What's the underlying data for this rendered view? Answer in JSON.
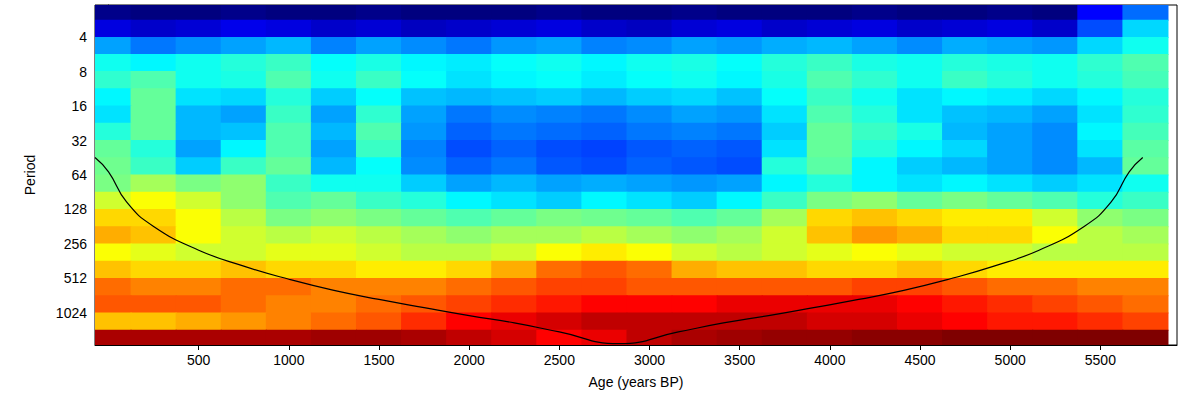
{
  "chart_data": {
    "type": "heatmap",
    "x_label": "Age (years BP)",
    "y_label": "Period",
    "log": "y",
    "xlim": [
      -75,
      5925
    ],
    "xticks": [
      500,
      1000,
      1500,
      2000,
      2500,
      3000,
      3500,
      4000,
      4500,
      5000,
      5500
    ],
    "ylim": [
      2.1,
      1950
    ],
    "yticks": [
      4,
      8,
      16,
      32,
      64,
      128,
      256,
      512,
      1024
    ],
    "x": [
      0,
      250,
      500,
      750,
      1000,
      1250,
      1500,
      1750,
      2000,
      2250,
      2500,
      2750,
      3000,
      3250,
      3500,
      3750,
      4000,
      4250,
      4500,
      4750,
      5000,
      5250,
      5500,
      5750
    ],
    "y": [
      2.4,
      3.4,
      4.8,
      6.7,
      9.5,
      13.5,
      19,
      27,
      38,
      54,
      76,
      108,
      152,
      215,
      304,
      431,
      609,
      861,
      1218,
      1722
    ],
    "power": [
      [
        0.4,
        0.3,
        0.3,
        0.4,
        0.3,
        0.3,
        0.4,
        0.3,
        0.3,
        0.3,
        0.4,
        0.3,
        0.3,
        0.4,
        0.3,
        0.3,
        0.3,
        0.4,
        0.3,
        0.3,
        0.4,
        0.3,
        1.5,
        2.5
      ],
      [
        1.2,
        1.0,
        1.1,
        1.3,
        1.2,
        1.0,
        1.1,
        0.9,
        1.0,
        1.1,
        1.2,
        1.0,
        0.9,
        1.1,
        1.2,
        1.0,
        1.1,
        1.2,
        1.0,
        1.1,
        1.2,
        1.0,
        2.2,
        3.5
      ],
      [
        3.0,
        2.6,
        2.8,
        3.0,
        3.2,
        2.7,
        3.0,
        2.8,
        2.6,
        2.9,
        3.0,
        2.7,
        2.8,
        3.0,
        2.9,
        3.1,
        3.2,
        3.0,
        2.8,
        3.1,
        3.0,
        2.9,
        3.5,
        4.0
      ],
      [
        4.0,
        3.8,
        4.0,
        4.2,
        4.4,
        3.9,
        4.1,
        3.8,
        3.7,
        3.9,
        4.0,
        3.8,
        4.0,
        4.1,
        3.9,
        4.2,
        4.4,
        4.1,
        4.0,
        4.2,
        4.1,
        4.0,
        4.3,
        4.6
      ],
      [
        4.3,
        4.6,
        4.0,
        4.1,
        4.6,
        4.0,
        4.4,
        3.9,
        3.6,
        3.8,
        3.9,
        3.7,
        3.9,
        4.0,
        3.8,
        4.1,
        4.6,
        4.3,
        4.0,
        4.4,
        4.2,
        4.0,
        4.2,
        4.5
      ],
      [
        3.8,
        4.8,
        3.6,
        3.5,
        4.2,
        3.4,
        3.9,
        3.3,
        3.2,
        3.3,
        3.4,
        3.2,
        3.4,
        3.5,
        3.3,
        3.9,
        4.4,
        4.0,
        3.6,
        3.8,
        3.7,
        3.5,
        3.8,
        4.2
      ],
      [
        3.6,
        4.8,
        3.2,
        3.0,
        4.4,
        3.0,
        4.3,
        3.0,
        2.6,
        2.8,
        2.7,
        2.6,
        2.8,
        3.0,
        2.9,
        3.6,
        4.6,
        4.2,
        3.6,
        3.3,
        3.2,
        3.0,
        3.6,
        4.3
      ],
      [
        4.2,
        4.8,
        3.2,
        3.3,
        4.6,
        3.2,
        4.6,
        2.9,
        2.4,
        2.6,
        2.5,
        2.4,
        2.6,
        2.7,
        2.6,
        3.4,
        4.8,
        4.4,
        4.1,
        3.2,
        3.0,
        2.8,
        3.8,
        4.5
      ],
      [
        4.8,
        4.2,
        3.0,
        3.8,
        4.6,
        3.0,
        4.4,
        2.7,
        2.2,
        2.4,
        2.2,
        2.1,
        2.3,
        2.4,
        2.3,
        3.6,
        4.8,
        4.2,
        3.8,
        3.5,
        3.0,
        2.8,
        3.6,
        4.7
      ],
      [
        4.9,
        4.4,
        3.4,
        4.4,
        4.8,
        3.2,
        3.9,
        2.8,
        2.4,
        2.6,
        2.3,
        2.2,
        2.4,
        2.3,
        2.2,
        4.2,
        4.7,
        3.8,
        3.4,
        3.2,
        3.0,
        2.8,
        3.2,
        4.8
      ],
      [
        5.0,
        5.4,
        5.0,
        5.2,
        4.4,
        4.0,
        4.0,
        3.4,
        3.0,
        3.2,
        3.0,
        3.1,
        3.0,
        2.9,
        3.0,
        3.8,
        4.2,
        3.8,
        3.6,
        3.8,
        3.6,
        3.4,
        3.6,
        4.0
      ],
      [
        5.8,
        6.2,
        5.8,
        5.2,
        4.6,
        4.8,
        4.4,
        4.2,
        3.8,
        3.6,
        3.4,
        3.8,
        3.6,
        3.4,
        3.8,
        4.4,
        5.0,
        5.2,
        4.8,
        5.0,
        4.8,
        4.6,
        4.2,
        4.4
      ],
      [
        6.6,
        6.6,
        6.2,
        5.6,
        5.0,
        5.2,
        5.0,
        4.8,
        4.6,
        4.8,
        5.0,
        4.9,
        4.8,
        4.6,
        4.8,
        5.4,
        6.6,
        6.8,
        6.6,
        6.4,
        6.4,
        5.8,
        5.2,
        5.0
      ],
      [
        7.0,
        6.8,
        6.2,
        5.8,
        5.6,
        5.8,
        5.6,
        5.4,
        5.2,
        5.4,
        5.4,
        5.6,
        5.4,
        5.2,
        5.4,
        5.8,
        6.8,
        7.2,
        7.0,
        6.6,
        6.6,
        6.2,
        5.6,
        5.4
      ],
      [
        6.2,
        6.0,
        5.8,
        5.8,
        6.0,
        6.0,
        5.8,
        5.6,
        5.6,
        5.8,
        6.2,
        6.4,
        6.2,
        5.8,
        5.6,
        5.8,
        6.0,
        6.2,
        6.0,
        5.8,
        5.8,
        5.6,
        5.6,
        5.6
      ],
      [
        6.8,
        6.6,
        6.6,
        6.8,
        6.6,
        6.6,
        6.4,
        6.4,
        6.6,
        7.0,
        7.6,
        7.8,
        7.6,
        7.0,
        6.8,
        6.8,
        6.6,
        6.6,
        6.8,
        6.6,
        6.4,
        6.4,
        6.4,
        6.4
      ],
      [
        7.6,
        7.4,
        7.4,
        7.6,
        7.6,
        7.4,
        7.4,
        7.4,
        7.6,
        7.8,
        8.0,
        8.0,
        7.8,
        7.8,
        7.8,
        7.8,
        7.8,
        8.0,
        8.0,
        7.8,
        7.6,
        7.6,
        7.4,
        7.4
      ],
      [
        7.8,
        7.8,
        7.8,
        7.6,
        7.4,
        7.4,
        7.6,
        7.8,
        8.0,
        8.2,
        8.4,
        8.6,
        8.6,
        8.6,
        8.8,
        8.8,
        8.8,
        8.8,
        8.6,
        8.4,
        8.2,
        8.0,
        7.8,
        7.6
      ],
      [
        6.8,
        6.8,
        7.0,
        7.2,
        7.4,
        7.6,
        7.8,
        8.2,
        8.6,
        8.8,
        9.0,
        9.2,
        9.2,
        9.2,
        9.2,
        9.2,
        9.0,
        9.0,
        8.8,
        8.6,
        8.4,
        8.4,
        8.2,
        8.0
      ],
      [
        9.4,
        9.4,
        9.4,
        9.4,
        9.4,
        9.5,
        9.5,
        9.4,
        9.2,
        9.0,
        8.6,
        8.8,
        9.2,
        9.4,
        9.5,
        9.6,
        9.6,
        9.7,
        9.7,
        9.8,
        9.8,
        9.8,
        9.8,
        9.8
      ]
    ],
    "cone_of_influence": {
      "x": [
        -75,
        0,
        100,
        250,
        500,
        750,
        1000,
        1250,
        1500,
        1750,
        2000,
        2250,
        2500,
        2830,
        3160,
        3410,
        3660,
        3910,
        4160,
        4410,
        4660,
        4910,
        5160,
        5410,
        5560,
        5660,
        5735
      ],
      "y": [
        45,
        60,
        110,
        180,
        290,
        400,
        520,
        650,
        780,
        920,
        1080,
        1250,
        1500,
        1900,
        1500,
        1250,
        1080,
        920,
        780,
        650,
        520,
        400,
        290,
        180,
        110,
        60,
        45
      ]
    }
  }
}
